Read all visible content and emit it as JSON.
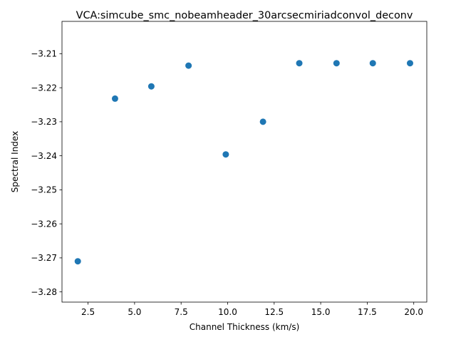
{
  "chart_data": {
    "type": "scatter",
    "title": "VCA:simcube_smc_nobeamheader_30arcsecmiriadconvol_deconv",
    "xlabel": "Channel Thickness (km/s)",
    "ylabel": "Spectral Index",
    "xlim": [
      1.1,
      20.7
    ],
    "ylim": [
      -3.283,
      -3.2005
    ],
    "xticks": [
      2.5,
      5.0,
      7.5,
      10.0,
      12.5,
      15.0,
      17.5,
      20.0
    ],
    "xtick_labels": [
      "2.5",
      "5.0",
      "7.5",
      "10.0",
      "12.5",
      "15.0",
      "17.5",
      "20.0"
    ],
    "yticks": [
      -3.28,
      -3.27,
      -3.26,
      -3.25,
      -3.24,
      -3.23,
      -3.22,
      -3.21
    ],
    "ytick_labels": [
      "−3.28",
      "−3.27",
      "−3.26",
      "−3.25",
      "−3.24",
      "−3.23",
      "−3.22",
      "−3.21"
    ],
    "grid": false,
    "color": "#1f77b4",
    "points": [
      {
        "x": 1.95,
        "y": -3.271
      },
      {
        "x": 3.95,
        "y": -3.2232
      },
      {
        "x": 5.9,
        "y": -3.2196
      },
      {
        "x": 7.9,
        "y": -3.2135
      },
      {
        "x": 9.9,
        "y": -3.2396
      },
      {
        "x": 11.9,
        "y": -3.23
      },
      {
        "x": 13.85,
        "y": -3.2128
      },
      {
        "x": 15.85,
        "y": -3.2128
      },
      {
        "x": 17.8,
        "y": -3.2128
      },
      {
        "x": 19.8,
        "y": -3.2128
      }
    ]
  }
}
